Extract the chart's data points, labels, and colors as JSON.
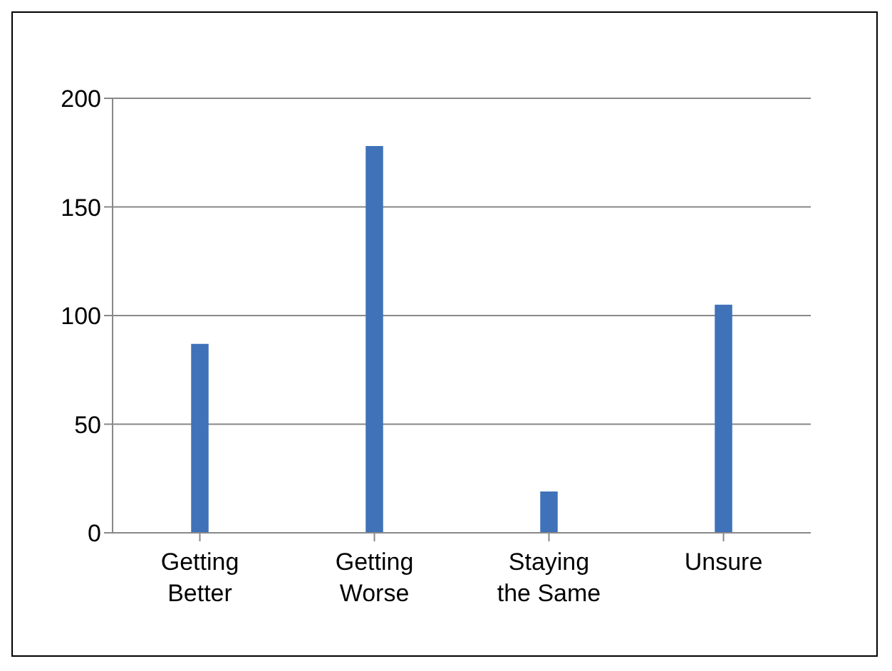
{
  "chart_data": {
    "type": "bar",
    "categories": [
      "Getting Better",
      "Getting Worse",
      "Staying the Same",
      "Unsure"
    ],
    "values": [
      87,
      178,
      19,
      105
    ],
    "color": "#3f72b8",
    "ylim": [
      0,
      200
    ],
    "yticks": [
      0,
      50,
      100,
      150,
      200
    ],
    "grid": "y"
  }
}
